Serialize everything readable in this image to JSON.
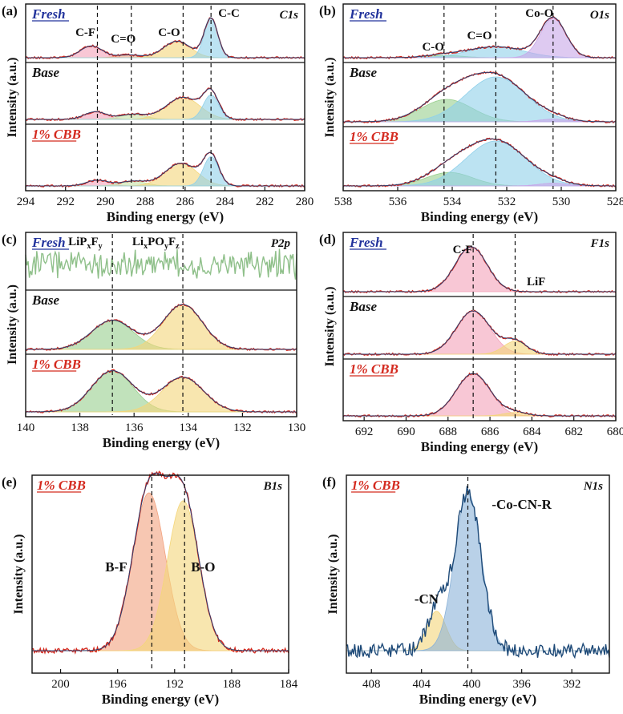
{
  "figure": {
    "x_label": "Binding energy (eV)",
    "y_label": "Intensity (a.u.)"
  },
  "colors": {
    "raw": "#d42a1f",
    "envelope": "#2d3e6e",
    "fresh_label": "#22339c",
    "cbb_label": "#d42a1f",
    "base_label": "#111111",
    "p2p_fresh_line": "#8fc08a",
    "pink": "#f3a1b9",
    "yellow": "#f4d67a",
    "blue": "#8fd0ea",
    "green": "#98cf8e",
    "purple": "#c8a6e8",
    "salmon": "#f2a27f",
    "lightgreen": "#c8e2a5",
    "navy_noise": "#1e4a78",
    "steelblue": "#8bb2d8"
  },
  "chart_data": [
    {
      "id": "a",
      "panel_label": "(a)",
      "type": "line",
      "element": "C1s",
      "x_range": [
        294,
        280
      ],
      "x_ticks": [
        "294",
        "292",
        "290",
        "288",
        "286",
        "284",
        "282",
        "280"
      ],
      "xlabel": "Binding energy (eV)",
      "ylabel": "Intensity (a.u.)",
      "reference_lines": [
        290.4,
        288.7,
        286.1,
        284.7
      ],
      "annotations": [
        {
          "text": "C-F",
          "x": 291.0
        },
        {
          "text": "C=O",
          "x": 289.1
        },
        {
          "text": "C-O",
          "x": 286.8
        },
        {
          "text": "C-C",
          "x": 283.8
        }
      ],
      "subpanels": [
        {
          "label": "Fresh",
          "peaks": [
            {
              "name": "C-F",
              "center": 290.7,
              "height": 0.3,
              "fwhm": 1.3,
              "color": "pink"
            },
            {
              "name": "C=O",
              "center": 288.8,
              "height": 0.07,
              "fwhm": 1.4,
              "color": "salmon"
            },
            {
              "name": "C-O",
              "center": 286.4,
              "height": 0.42,
              "fwhm": 1.6,
              "color": "yellow"
            },
            {
              "name": "C-C",
              "center": 284.7,
              "height": 1.0,
              "fwhm": 0.8,
              "color": "blue"
            }
          ]
        },
        {
          "label": "Base",
          "peaks": [
            {
              "name": "C-F",
              "center": 290.5,
              "height": 0.18,
              "fwhm": 1.3,
              "color": "pink"
            },
            {
              "name": "C=O",
              "center": 288.6,
              "height": 0.12,
              "fwhm": 1.5,
              "color": "lightgreen"
            },
            {
              "name": "C-O",
              "center": 286.1,
              "height": 0.52,
              "fwhm": 2.0,
              "color": "yellow"
            },
            {
              "name": "C-C",
              "center": 284.7,
              "height": 0.58,
              "fwhm": 0.9,
              "color": "blue"
            }
          ]
        },
        {
          "label": "1% CBB",
          "peaks": [
            {
              "name": "C-F",
              "center": 290.4,
              "height": 0.12,
              "fwhm": 1.3,
              "color": "pink"
            },
            {
              "name": "C=O",
              "center": 288.6,
              "height": 0.1,
              "fwhm": 1.5,
              "color": "lightgreen"
            },
            {
              "name": "C-O",
              "center": 286.2,
              "height": 0.48,
              "fwhm": 1.9,
              "color": "yellow"
            },
            {
              "name": "C-C",
              "center": 284.7,
              "height": 0.62,
              "fwhm": 0.9,
              "color": "blue"
            }
          ]
        }
      ]
    },
    {
      "id": "b",
      "panel_label": "(b)",
      "type": "line",
      "element": "O1s",
      "x_range": [
        538,
        528
      ],
      "x_ticks": [
        "538",
        "536",
        "534",
        "532",
        "530",
        "528"
      ],
      "xlabel": "Binding energy (eV)",
      "ylabel": "Intensity (a.u.)",
      "reference_lines": [
        534.3,
        532.4,
        530.3
      ],
      "annotations": [
        {
          "text": "C-O",
          "x": 534.7
        },
        {
          "text": "C=O",
          "x": 533.0
        },
        {
          "text": "Co-O",
          "x": 530.8
        }
      ],
      "subpanels": [
        {
          "label": "Fresh",
          "peaks": [
            {
              "name": "C-O",
              "center": 534.3,
              "height": 0.06,
              "fwhm": 1.6,
              "color": "green"
            },
            {
              "name": "C=O",
              "center": 532.4,
              "height": 0.28,
              "fwhm": 2.4,
              "color": "blue"
            },
            {
              "name": "Co-O",
              "center": 530.3,
              "height": 1.0,
              "fwhm": 1.1,
              "color": "purple"
            }
          ]
        },
        {
          "label": "Base",
          "peaks": [
            {
              "name": "C-O",
              "center": 534.2,
              "height": 0.5,
              "fwhm": 2.2,
              "color": "green"
            },
            {
              "name": "C=O",
              "center": 532.4,
              "height": 1.0,
              "fwhm": 2.6,
              "color": "blue"
            },
            {
              "name": "Co-O",
              "center": 530.3,
              "height": 0.06,
              "fwhm": 1.2,
              "color": "purple"
            }
          ]
        },
        {
          "label": "1% CBB",
          "peaks": [
            {
              "name": "C-O",
              "center": 534.1,
              "height": 0.3,
              "fwhm": 2.0,
              "color": "green"
            },
            {
              "name": "C=O",
              "center": 532.4,
              "height": 1.0,
              "fwhm": 2.6,
              "color": "blue"
            },
            {
              "name": "Co-O",
              "center": 530.3,
              "height": 0.06,
              "fwhm": 1.2,
              "color": "purple"
            }
          ]
        }
      ]
    },
    {
      "id": "c",
      "panel_label": "(c)",
      "type": "line",
      "element": "P2p",
      "x_range": [
        140,
        130
      ],
      "x_ticks": [
        "140",
        "138",
        "136",
        "134",
        "132",
        "130"
      ],
      "xlabel": "Binding energy (eV)",
      "ylabel": "Intensity (a.u.)",
      "reference_lines": [
        136.8,
        134.2
      ],
      "annotations": [
        {
          "text": "LiPxFy",
          "x": 137.8
        },
        {
          "text": "LixPOyFz",
          "x": 135.2
        }
      ],
      "subpanels": [
        {
          "label": "Fresh",
          "noise_only": true,
          "peaks": []
        },
        {
          "label": "Base",
          "peaks": [
            {
              "name": "LiPxFy",
              "center": 136.8,
              "height": 0.65,
              "fwhm": 1.8,
              "color": "green"
            },
            {
              "name": "LixPOyFz",
              "center": 134.2,
              "height": 1.0,
              "fwhm": 1.7,
              "color": "yellow"
            }
          ]
        },
        {
          "label": "1% CBB",
          "peaks": [
            {
              "name": "LiPxFy",
              "center": 136.8,
              "height": 0.95,
              "fwhm": 1.8,
              "color": "green"
            },
            {
              "name": "LixPOyFz",
              "center": 134.2,
              "height": 0.8,
              "fwhm": 1.8,
              "color": "yellow"
            }
          ]
        }
      ]
    },
    {
      "id": "d",
      "panel_label": "(d)",
      "type": "line",
      "element": "F1s",
      "x_range": [
        693,
        680
      ],
      "x_ticks": [
        "692",
        "690",
        "688",
        "686",
        "684",
        "682",
        "680"
      ],
      "xlabel": "Binding energy (eV)",
      "ylabel": "Intensity (a.u.)",
      "reference_lines": [
        686.8,
        684.8
      ],
      "annotations": [
        {
          "text": "C-F",
          "x": 687.3
        },
        {
          "text": "LiF",
          "x": 683.8
        }
      ],
      "subpanels": [
        {
          "label": "Fresh",
          "peaks": [
            {
              "name": "C-F",
              "center": 686.9,
              "height": 1.0,
              "fwhm": 1.8,
              "color": "pink"
            }
          ]
        },
        {
          "label": "Base",
          "peaks": [
            {
              "name": "C-F",
              "center": 686.8,
              "height": 1.0,
              "fwhm": 1.9,
              "color": "pink"
            },
            {
              "name": "LiF",
              "center": 684.8,
              "height": 0.3,
              "fwhm": 1.3,
              "color": "yellow"
            }
          ]
        },
        {
          "label": "1% CBB",
          "peaks": [
            {
              "name": "C-F",
              "center": 686.8,
              "height": 1.0,
              "fwhm": 1.9,
              "color": "pink"
            },
            {
              "name": "LiF",
              "center": 684.8,
              "height": 0.08,
              "fwhm": 1.3,
              "color": "yellow"
            }
          ]
        }
      ]
    },
    {
      "id": "e",
      "panel_label": "(e)",
      "type": "line",
      "element": "B1s",
      "x_range": [
        202,
        184
      ],
      "x_ticks": [
        "200",
        "196",
        "192",
        "188",
        "184"
      ],
      "xlabel": "Binding energy (eV)",
      "ylabel": "Intensity (a.u.)",
      "reference_lines": [
        193.6,
        191.3
      ],
      "annotations": [
        {
          "text": "B-F",
          "x": 196.1
        },
        {
          "text": "B-O",
          "x": 190.0
        }
      ],
      "subpanels": [
        {
          "label": "1% CBB",
          "peaks": [
            {
              "name": "B-F",
              "center": 193.8,
              "height": 1.0,
              "fwhm": 2.7,
              "color": "salmon"
            },
            {
              "name": "B-O",
              "center": 191.4,
              "height": 0.95,
              "fwhm": 2.6,
              "color": "yellow"
            }
          ]
        }
      ]
    },
    {
      "id": "f",
      "panel_label": "(f)",
      "type": "line",
      "element": "N1s",
      "x_range": [
        410,
        389
      ],
      "x_ticks": [
        "408",
        "404",
        "400",
        "396",
        "392"
      ],
      "xlabel": "Binding energy (eV)",
      "ylabel": "Intensity (a.u.)",
      "reference_lines": [
        400.3
      ],
      "annotations": [
        {
          "text": "-Co-CN-R",
          "x": 396.0
        },
        {
          "text": "-CN",
          "x": 403.6
        }
      ],
      "subpanels": [
        {
          "label": "1% CBB",
          "peaks": [
            {
              "name": "-CN",
              "center": 402.8,
              "height": 0.25,
              "fwhm": 1.8,
              "color": "yellow"
            },
            {
              "name": "-Co-CN-R",
              "center": 400.3,
              "height": 1.0,
              "fwhm": 2.5,
              "color": "steelblue"
            }
          ]
        }
      ]
    }
  ]
}
